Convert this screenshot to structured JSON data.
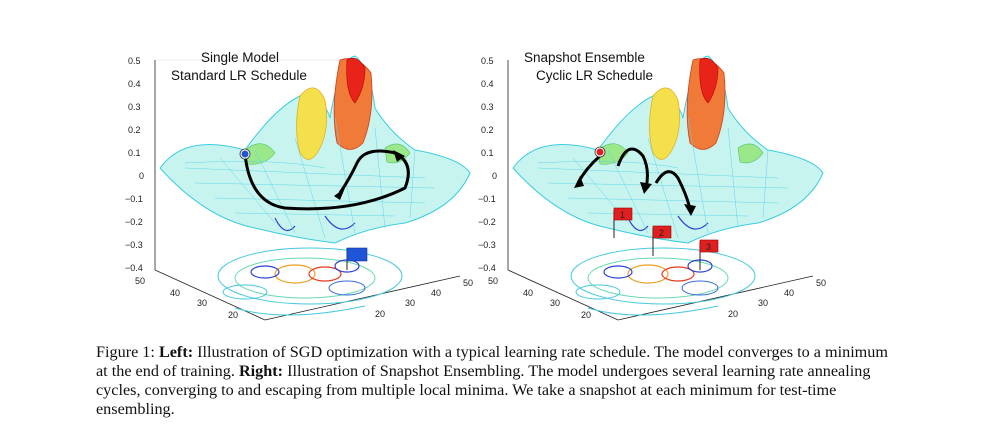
{
  "panels": [
    {
      "title_line1": "Single Model",
      "title_line2": "Standard LR Schedule",
      "z_ticks": [
        "0.5",
        "0.4",
        "0.3",
        "0.2",
        "0.1",
        "0",
        "−0.1",
        "−0.2",
        "−0.3",
        "−0.4"
      ],
      "left_ticks": [
        "50",
        "40",
        "30",
        "20"
      ],
      "right_ticks": [
        "50",
        "40",
        "30",
        "20"
      ],
      "flags": []
    },
    {
      "title_line1": "Snapshot Ensemble",
      "title_line2": "Cyclic LR Schedule",
      "z_ticks": [
        "0.5",
        "0.4",
        "0.3",
        "0.2",
        "0.1",
        "0",
        "−0.1",
        "−0.2",
        "−0.3",
        "−0.4"
      ],
      "left_ticks": [
        "50",
        "40",
        "30",
        "20"
      ],
      "right_ticks": [
        "50",
        "40",
        "30",
        "20"
      ],
      "flags": [
        "1",
        "2",
        "3"
      ]
    }
  ],
  "caption": {
    "figure_label": "Figure 1:",
    "left_label": "Left:",
    "left_text": " Illustration of SGD optimization with a typical learning rate schedule. The model converges to a minimum at the end of training. ",
    "right_label": "Right:",
    "right_text": " Illustration of Snapshot Ensembling. The model undergoes several learning rate annealing cycles, converging to and escaping from multiple local minima. We take a snapshot at each minimum for test-time ensembling."
  },
  "colors": {
    "mesh_low": "#2a3fd6",
    "mesh_mid": "#33d6e0",
    "mesh_high": "#e8231a",
    "flag_blue": "#1f55d6",
    "flag_red": "#e02020",
    "trajectory": "#000000"
  }
}
